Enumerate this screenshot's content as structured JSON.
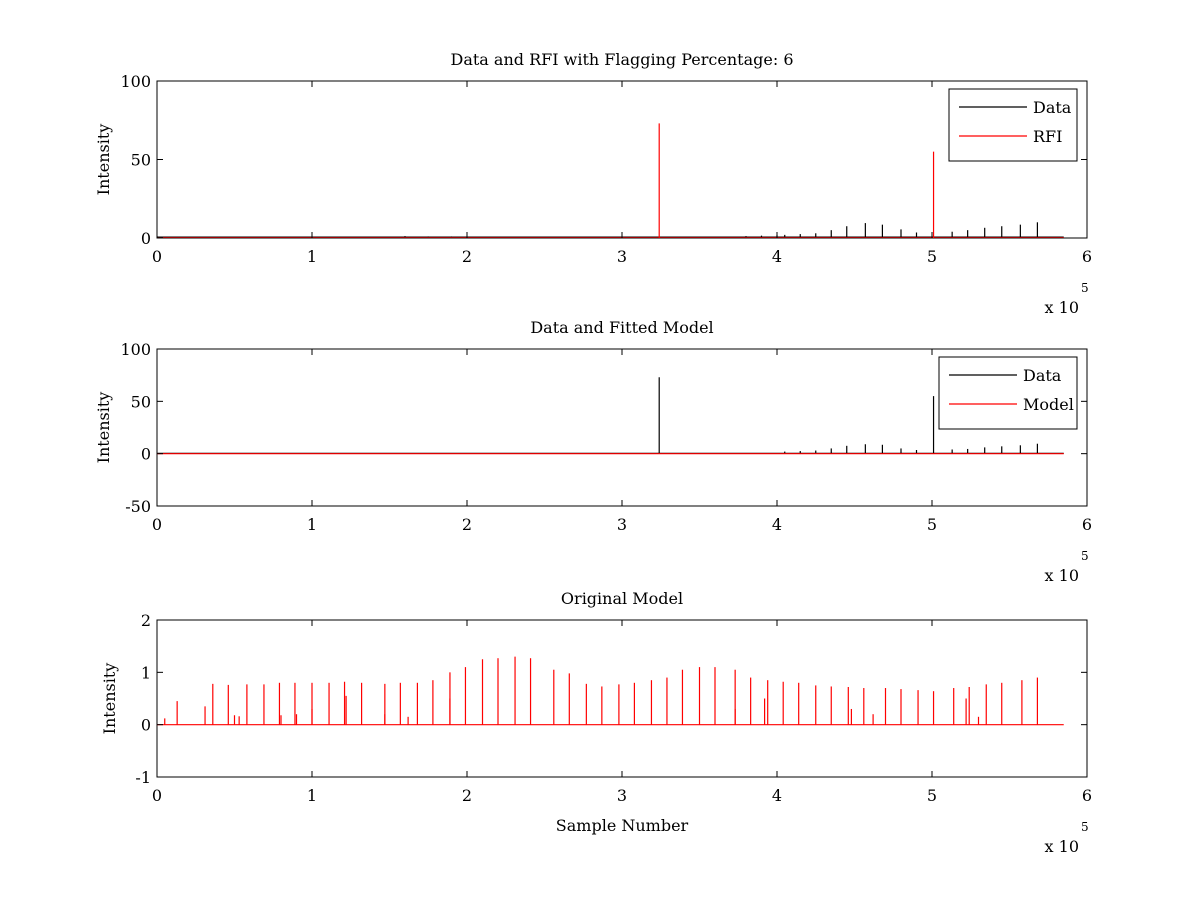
{
  "chart_data": [
    {
      "type": "line",
      "title": "Data and RFI with Flagging Percentage: 6",
      "xlabel": "",
      "ylabel": "Intensity",
      "xlim": [
        0,
        6
      ],
      "ylim": [
        0,
        100
      ],
      "x_ticks": [
        "0",
        "1",
        "2",
        "3",
        "4",
        "5",
        "6"
      ],
      "y_ticks": [
        "0",
        "50",
        "100"
      ],
      "x_multiplier": "x 10",
      "x_multiplier_power": "5",
      "legend": {
        "placement": "top-right",
        "entries": [
          {
            "label": "Data",
            "color": "#000000"
          },
          {
            "label": "RFI",
            "color": "#ff0000"
          }
        ]
      },
      "series": [
        {
          "name": "Data",
          "color": "#000000",
          "baseline": 0.6,
          "points": [
            [
              0.0,
              1.2
            ],
            [
              0.2,
              0.8
            ],
            [
              1.4,
              0.9
            ],
            [
              1.6,
              1.2
            ],
            [
              1.75,
              1.0
            ],
            [
              1.9,
              1.0
            ],
            [
              2.0,
              1.0
            ],
            [
              2.1,
              0.9
            ],
            [
              2.2,
              0.8
            ],
            [
              3.5,
              0.6
            ],
            [
              3.7,
              0.8
            ],
            [
              3.8,
              1.2
            ],
            [
              3.9,
              1.5
            ],
            [
              4.0,
              1.8
            ],
            [
              4.05,
              2.0
            ],
            [
              4.15,
              2.5
            ],
            [
              4.25,
              3.0
            ],
            [
              4.35,
              5.0
            ],
            [
              4.45,
              7.5
            ],
            [
              4.57,
              9.5
            ],
            [
              4.68,
              8.5
            ],
            [
              4.8,
              5.5
            ],
            [
              4.9,
              3.5
            ],
            [
              5.13,
              4.0
            ],
            [
              5.23,
              5.0
            ],
            [
              5.34,
              6.5
            ],
            [
              5.45,
              7.5
            ],
            [
              5.57,
              8.5
            ],
            [
              5.68,
              10.0
            ]
          ]
        },
        {
          "name": "RFI",
          "color": "#ff0000",
          "baseline": 0,
          "points": [
            [
              3.24,
              73
            ],
            [
              5.01,
              55
            ]
          ]
        }
      ]
    },
    {
      "type": "line",
      "title": "Data and Fitted Model",
      "xlabel": "",
      "ylabel": "Intensity",
      "xlim": [
        0,
        6
      ],
      "ylim": [
        -50,
        100
      ],
      "x_ticks": [
        "0",
        "1",
        "2",
        "3",
        "4",
        "5",
        "6"
      ],
      "y_ticks": [
        "-50",
        "0",
        "50",
        "100"
      ],
      "x_multiplier": "x 10",
      "x_multiplier_power": "5",
      "legend": {
        "placement": "top-right",
        "entries": [
          {
            "label": "Data",
            "color": "#000000"
          },
          {
            "label": "Model",
            "color": "#ff0000"
          }
        ]
      },
      "series": [
        {
          "name": "Data",
          "color": "#000000",
          "baseline": 0.3,
          "points": [
            [
              3.24,
              73
            ],
            [
              5.01,
              55
            ],
            [
              4.05,
              2.0
            ],
            [
              4.15,
              2.5
            ],
            [
              4.25,
              3.0
            ],
            [
              4.35,
              5.0
            ],
            [
              4.45,
              7.5
            ],
            [
              4.57,
              9.0
            ],
            [
              4.68,
              8.5
            ],
            [
              4.8,
              5.0
            ],
            [
              4.9,
              3.5
            ],
            [
              5.13,
              4.0
            ],
            [
              5.23,
              4.5
            ],
            [
              5.34,
              6.0
            ],
            [
              5.45,
              7.0
            ],
            [
              5.57,
              8.0
            ],
            [
              5.68,
              9.5
            ]
          ]
        },
        {
          "name": "Model",
          "color": "#ff0000",
          "baseline": 0,
          "points": []
        }
      ]
    },
    {
      "type": "line",
      "title": "Original Model",
      "xlabel": "Sample Number",
      "ylabel": "Intensity",
      "xlim": [
        0,
        6
      ],
      "ylim": [
        -1,
        2
      ],
      "x_ticks": [
        "0",
        "1",
        "2",
        "3",
        "4",
        "5",
        "6"
      ],
      "y_ticks": [
        "-1",
        "0",
        "1",
        "2"
      ],
      "x_multiplier": "x 10",
      "x_multiplier_power": "5",
      "series": [
        {
          "name": "Model",
          "color": "#ff0000",
          "baseline": 0,
          "points": [
            [
              0.05,
              0.12
            ],
            [
              0.13,
              0.45
            ],
            [
              0.31,
              0.35
            ],
            [
              0.36,
              0.78
            ],
            [
              0.46,
              0.76
            ],
            [
              0.5,
              0.18
            ],
            [
              0.53,
              0.16
            ],
            [
              0.58,
              0.77
            ],
            [
              0.69,
              0.77
            ],
            [
              0.79,
              0.8
            ],
            [
              0.89,
              0.8
            ],
            [
              1.0,
              0.8
            ],
            [
              1.11,
              0.8
            ],
            [
              1.21,
              0.82
            ],
            [
              1.32,
              0.8
            ],
            [
              1.47,
              0.78
            ],
            [
              1.57,
              0.8
            ],
            [
              1.68,
              0.8
            ],
            [
              1.78,
              0.85
            ],
            [
              1.89,
              1.0
            ],
            [
              1.99,
              1.1
            ],
            [
              2.1,
              1.25
            ],
            [
              2.2,
              1.27
            ],
            [
              2.31,
              1.3
            ],
            [
              2.41,
              1.27
            ],
            [
              2.56,
              1.05
            ],
            [
              2.66,
              0.98
            ],
            [
              2.77,
              0.78
            ],
            [
              2.87,
              0.73
            ],
            [
              2.98,
              0.77
            ],
            [
              3.08,
              0.8
            ],
            [
              3.19,
              0.85
            ],
            [
              3.29,
              0.9
            ],
            [
              3.39,
              1.05
            ],
            [
              3.5,
              1.1
            ],
            [
              3.6,
              1.1
            ],
            [
              3.73,
              1.05
            ],
            [
              3.83,
              0.9
            ],
            [
              3.94,
              0.85
            ],
            [
              4.04,
              0.82
            ],
            [
              4.14,
              0.8
            ],
            [
              4.25,
              0.75
            ],
            [
              4.35,
              0.73
            ],
            [
              4.46,
              0.72
            ],
            [
              4.56,
              0.7
            ],
            [
              4.7,
              0.7
            ],
            [
              4.8,
              0.68
            ],
            [
              4.91,
              0.66
            ],
            [
              5.01,
              0.64
            ],
            [
              5.14,
              0.7
            ],
            [
              5.24,
              0.72
            ],
            [
              5.35,
              0.77
            ],
            [
              5.45,
              0.8
            ],
            [
              5.58,
              0.85
            ],
            [
              5.68,
              0.9
            ],
            [
              4.48,
              0.3
            ],
            [
              4.62,
              0.2
            ],
            [
              3.92,
              0.5
            ],
            [
              5.22,
              0.5
            ],
            [
              0.9,
              0.2
            ],
            [
              1.0,
              0.3
            ],
            [
              1.22,
              0.55
            ],
            [
              1.89,
              0.5
            ],
            [
              0.8,
              0.18
            ],
            [
              1.62,
              0.15
            ],
            [
              1.47,
              0.2
            ],
            [
              3.73,
              0.3
            ],
            [
              5.3,
              0.15
            ]
          ]
        }
      ]
    }
  ]
}
